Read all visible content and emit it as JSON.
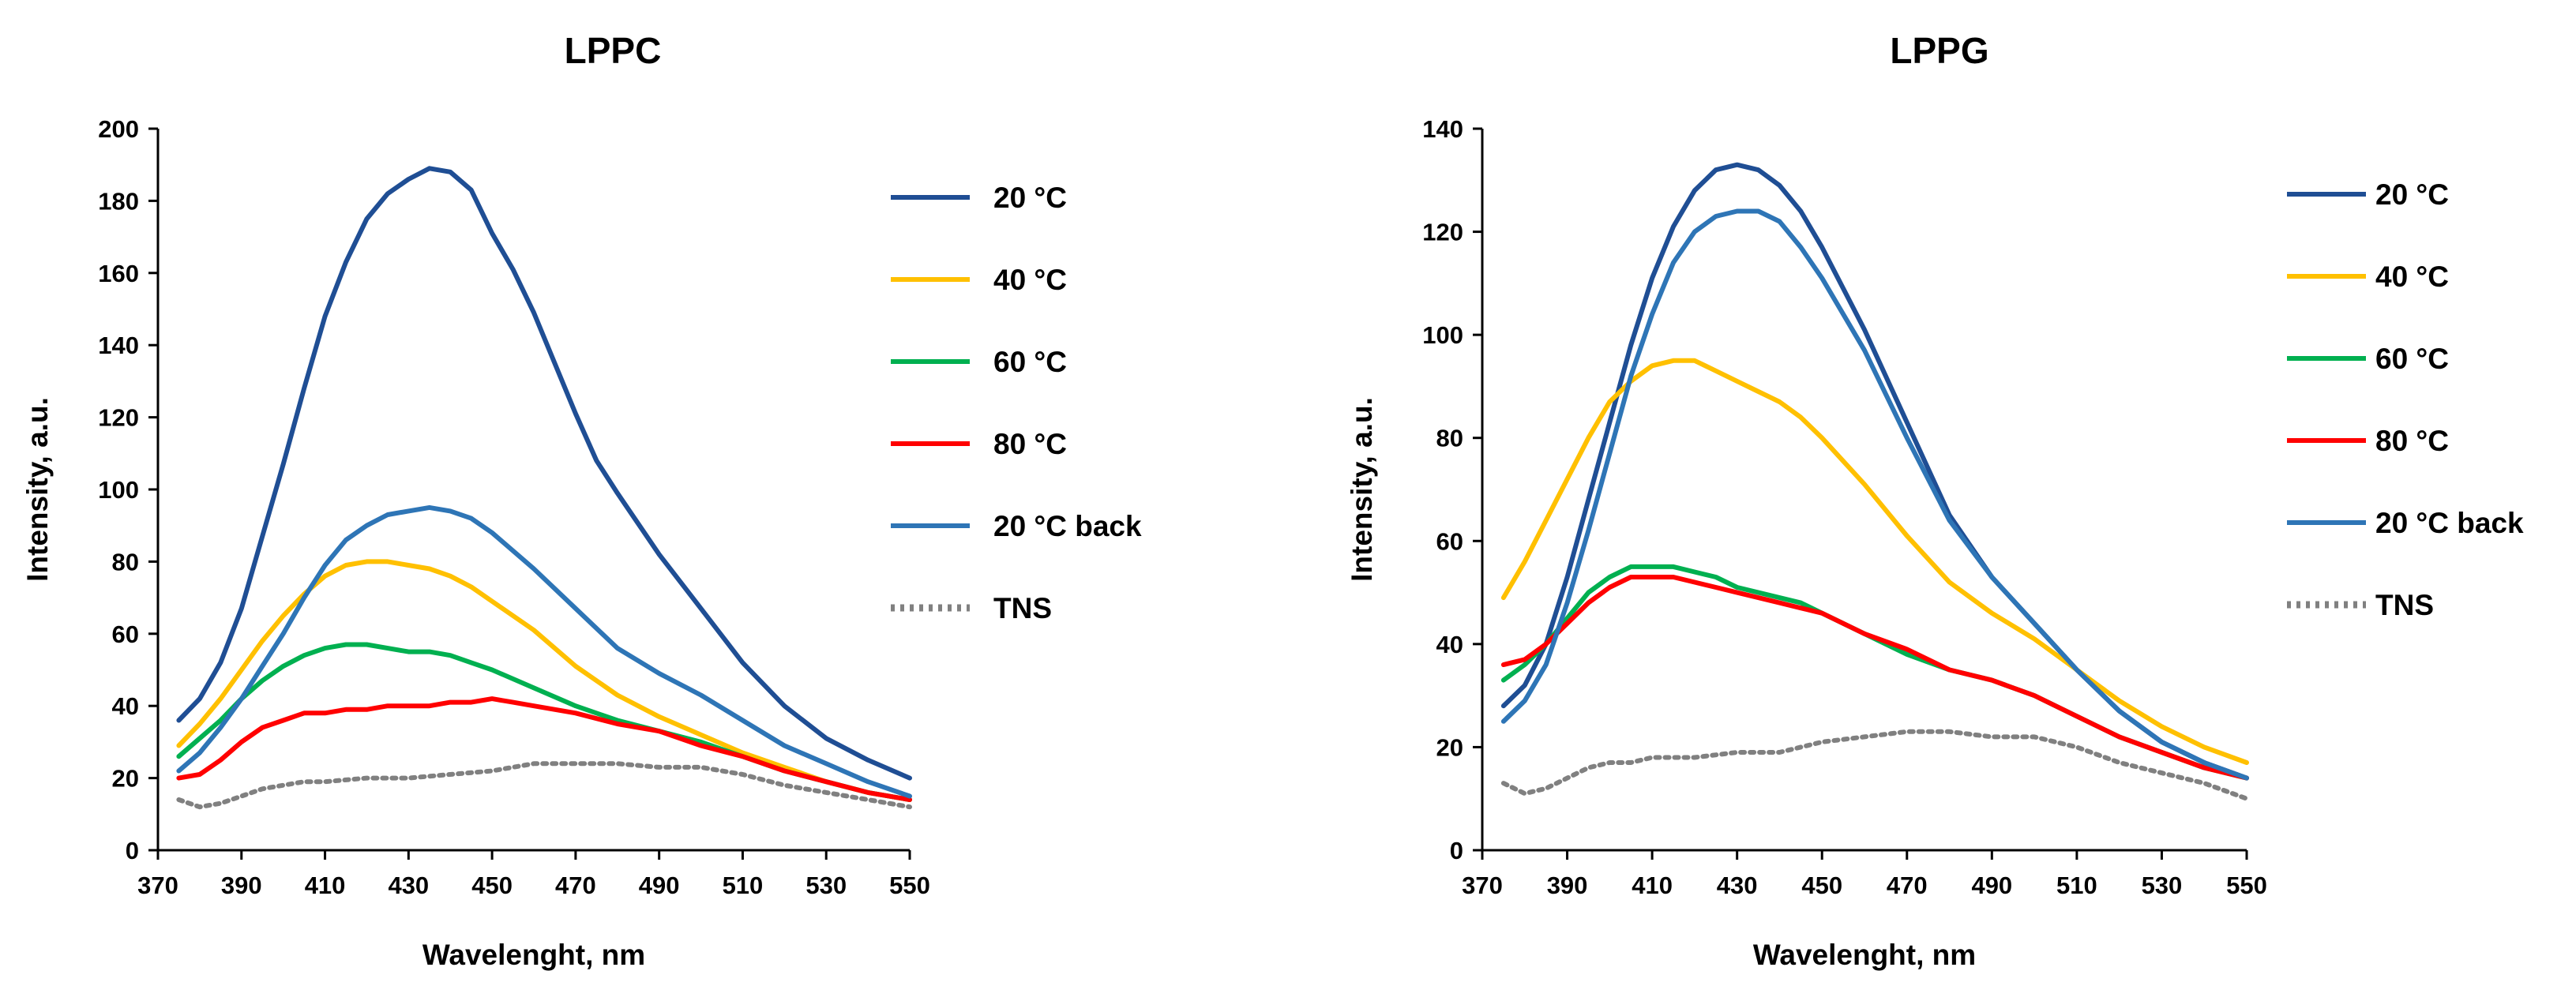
{
  "chart_data": [
    {
      "type": "line",
      "title": "LPPC",
      "xlabel": "Wavelenght, nm",
      "ylabel": "Intensity, a.u.",
      "xlim": [
        370,
        550
      ],
      "ylim": [
        0,
        200
      ],
      "xticks": [
        370,
        390,
        410,
        430,
        450,
        470,
        490,
        510,
        530,
        550
      ],
      "yticks": [
        0,
        20,
        40,
        60,
        80,
        100,
        120,
        140,
        160,
        180,
        200
      ],
      "legend_position": "right",
      "series": [
        {
          "name": "20 °C",
          "color": "#1f4e94",
          "dash": "solid",
          "x": [
            375,
            380,
            385,
            390,
            395,
            400,
            405,
            410,
            415,
            420,
            425,
            430,
            435,
            440,
            445,
            450,
            455,
            460,
            465,
            470,
            475,
            480,
            490,
            500,
            510,
            520,
            530,
            540,
            550
          ],
          "y": [
            36,
            42,
            52,
            67,
            87,
            107,
            128,
            148,
            163,
            175,
            182,
            186,
            189,
            188,
            183,
            171,
            161,
            149,
            135,
            121,
            108,
            99,
            82,
            67,
            52,
            40,
            31,
            25,
            20
          ]
        },
        {
          "name": "40 °C",
          "color": "#ffc000",
          "dash": "solid",
          "x": [
            375,
            380,
            385,
            390,
            395,
            400,
            405,
            410,
            415,
            420,
            425,
            430,
            435,
            440,
            445,
            450,
            460,
            470,
            480,
            490,
            500,
            510,
            520,
            530,
            540,
            550
          ],
          "y": [
            29,
            35,
            42,
            50,
            58,
            65,
            71,
            76,
            79,
            80,
            80,
            79,
            78,
            76,
            73,
            69,
            61,
            51,
            43,
            37,
            32,
            27,
            23,
            19,
            16,
            14
          ]
        },
        {
          "name": "60 °C",
          "color": "#00b050",
          "dash": "solid",
          "x": [
            375,
            380,
            385,
            390,
            395,
            400,
            405,
            410,
            415,
            420,
            425,
            430,
            435,
            440,
            445,
            450,
            460,
            470,
            480,
            490,
            500,
            510,
            520,
            530,
            540,
            550
          ],
          "y": [
            26,
            31,
            36,
            42,
            47,
            51,
            54,
            56,
            57,
            57,
            56,
            55,
            55,
            54,
            52,
            50,
            45,
            40,
            36,
            33,
            30,
            26,
            22,
            19,
            16,
            14
          ]
        },
        {
          "name": "80 °C",
          "color": "#ff0000",
          "dash": "solid",
          "x": [
            375,
            380,
            385,
            390,
            395,
            400,
            405,
            410,
            415,
            420,
            425,
            430,
            435,
            440,
            445,
            450,
            455,
            460,
            470,
            480,
            490,
            500,
            510,
            520,
            530,
            540,
            550
          ],
          "y": [
            20,
            21,
            25,
            30,
            34,
            36,
            38,
            38,
            39,
            39,
            40,
            40,
            40,
            41,
            41,
            42,
            41,
            40,
            38,
            35,
            33,
            29,
            26,
            22,
            19,
            16,
            14
          ]
        },
        {
          "name": "20 °C back",
          "color": "#2e75b6",
          "dash": "solid",
          "x": [
            375,
            380,
            385,
            390,
            395,
            400,
            405,
            410,
            415,
            420,
            425,
            430,
            435,
            440,
            445,
            450,
            460,
            470,
            480,
            490,
            500,
            510,
            520,
            530,
            540,
            550
          ],
          "y": [
            22,
            27,
            34,
            42,
            51,
            60,
            70,
            79,
            86,
            90,
            93,
            94,
            95,
            94,
            92,
            88,
            78,
            67,
            56,
            49,
            43,
            36,
            29,
            24,
            19,
            15
          ]
        },
        {
          "name": "TNS",
          "color": "#808080",
          "dash": "dotted",
          "x": [
            375,
            380,
            385,
            390,
            395,
            400,
            405,
            410,
            420,
            430,
            440,
            450,
            460,
            470,
            480,
            490,
            500,
            510,
            520,
            530,
            540,
            550
          ],
          "y": [
            14,
            12,
            13,
            15,
            17,
            18,
            19,
            19,
            20,
            20,
            21,
            22,
            24,
            24,
            24,
            23,
            23,
            21,
            18,
            16,
            14,
            12
          ]
        }
      ]
    },
    {
      "type": "line",
      "title": "LPPG",
      "xlabel": "Wavelenght, nm",
      "ylabel": "Intensity, a.u.",
      "xlim": [
        370,
        550
      ],
      "ylim": [
        0,
        140
      ],
      "xticks": [
        370,
        390,
        410,
        430,
        450,
        470,
        490,
        510,
        530,
        550
      ],
      "yticks": [
        0,
        20,
        40,
        60,
        80,
        100,
        120,
        140
      ],
      "legend_position": "right",
      "series": [
        {
          "name": "20 °C",
          "color": "#1f4e94",
          "dash": "solid",
          "x": [
            375,
            380,
            385,
            390,
            395,
            400,
            405,
            410,
            415,
            420,
            425,
            430,
            435,
            440,
            445,
            450,
            460,
            470,
            480,
            490,
            500,
            510,
            520,
            530,
            540,
            550
          ],
          "y": [
            28,
            32,
            40,
            53,
            68,
            83,
            98,
            111,
            121,
            128,
            132,
            133,
            132,
            129,
            124,
            117,
            101,
            83,
            65,
            53,
            44,
            35,
            27,
            21,
            17,
            14
          ]
        },
        {
          "name": "40 °C",
          "color": "#ffc000",
          "dash": "solid",
          "x": [
            375,
            380,
            385,
            390,
            395,
            400,
            405,
            410,
            415,
            420,
            425,
            430,
            435,
            440,
            445,
            450,
            460,
            470,
            480,
            490,
            500,
            510,
            520,
            530,
            540,
            550
          ],
          "y": [
            49,
            56,
            64,
            72,
            80,
            87,
            91,
            94,
            95,
            95,
            93,
            91,
            89,
            87,
            84,
            80,
            71,
            61,
            52,
            46,
            41,
            35,
            29,
            24,
            20,
            17
          ]
        },
        {
          "name": "60 °C",
          "color": "#00b050",
          "dash": "solid",
          "x": [
            375,
            380,
            385,
            390,
            395,
            400,
            405,
            410,
            415,
            420,
            425,
            430,
            435,
            440,
            445,
            450,
            460,
            470,
            480,
            490,
            500,
            510,
            520,
            530,
            540,
            550
          ],
          "y": [
            33,
            36,
            40,
            45,
            50,
            53,
            55,
            55,
            55,
            54,
            53,
            51,
            50,
            49,
            48,
            46,
            42,
            38,
            35,
            33,
            30,
            26,
            22,
            19,
            16,
            14
          ]
        },
        {
          "name": "80 °C",
          "color": "#ff0000",
          "dash": "solid",
          "x": [
            375,
            380,
            385,
            390,
            395,
            400,
            405,
            410,
            415,
            420,
            425,
            430,
            435,
            440,
            445,
            450,
            460,
            470,
            480,
            490,
            500,
            510,
            520,
            530,
            540,
            550
          ],
          "y": [
            36,
            37,
            40,
            44,
            48,
            51,
            53,
            53,
            53,
            52,
            51,
            50,
            49,
            48,
            47,
            46,
            42,
            39,
            35,
            33,
            30,
            26,
            22,
            19,
            16,
            14
          ]
        },
        {
          "name": "20 °C back",
          "color": "#2e75b6",
          "dash": "solid",
          "x": [
            375,
            380,
            385,
            390,
            395,
            400,
            405,
            410,
            415,
            420,
            425,
            430,
            435,
            440,
            445,
            450,
            460,
            470,
            480,
            490,
            500,
            510,
            520,
            530,
            540,
            550
          ],
          "y": [
            25,
            29,
            36,
            48,
            62,
            77,
            92,
            104,
            114,
            120,
            123,
            124,
            124,
            122,
            117,
            111,
            97,
            80,
            64,
            53,
            44,
            35,
            27,
            21,
            17,
            14
          ]
        },
        {
          "name": "TNS",
          "color": "#808080",
          "dash": "dotted",
          "x": [
            375,
            380,
            385,
            390,
            395,
            400,
            405,
            410,
            420,
            430,
            440,
            450,
            460,
            470,
            480,
            490,
            500,
            510,
            520,
            530,
            540,
            550
          ],
          "y": [
            13,
            11,
            12,
            14,
            16,
            17,
            17,
            18,
            18,
            19,
            19,
            21,
            22,
            23,
            23,
            22,
            22,
            20,
            17,
            15,
            13,
            10
          ]
        }
      ]
    }
  ]
}
